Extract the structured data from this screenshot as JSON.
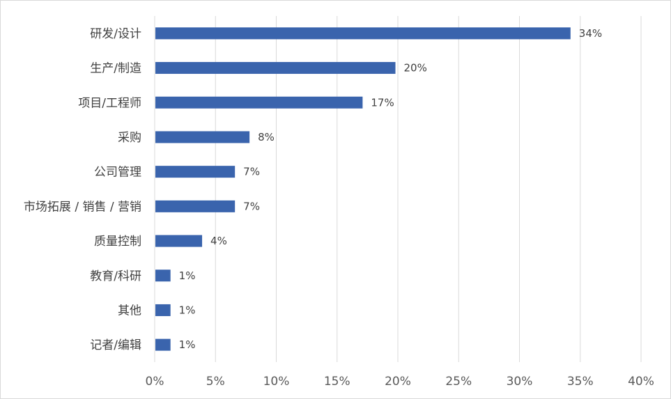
{
  "chart_data": {
    "type": "bar",
    "orientation": "horizontal",
    "title": "",
    "xlabel": "",
    "ylabel": "",
    "categories": [
      "研发/设计",
      "生产/制造",
      "项目/工程师",
      "采购",
      "公司管理",
      "市场拓展 / 销售 / 营销",
      "质量控制",
      "教育/科研",
      "其他",
      "记者/编辑"
    ],
    "values": [
      34.2,
      19.8,
      17.1,
      7.8,
      6.6,
      6.6,
      3.9,
      1.3,
      1.3,
      1.3
    ],
    "data_labels": [
      "34%",
      "20%",
      "17%",
      "8%",
      "7%",
      "7%",
      "4%",
      "1%",
      "1%",
      "1%"
    ],
    "xlim": [
      0,
      40
    ],
    "ticks": [
      0,
      5,
      10,
      15,
      20,
      25,
      30,
      35,
      40
    ],
    "tick_labels": [
      "0%",
      "5%",
      "10%",
      "15%",
      "20%",
      "25%",
      "30%",
      "35%",
      "40%"
    ],
    "grid": "vertical",
    "legend": "none",
    "bar_color": "#3a64ad",
    "grid_color": "#d9d9d9"
  }
}
